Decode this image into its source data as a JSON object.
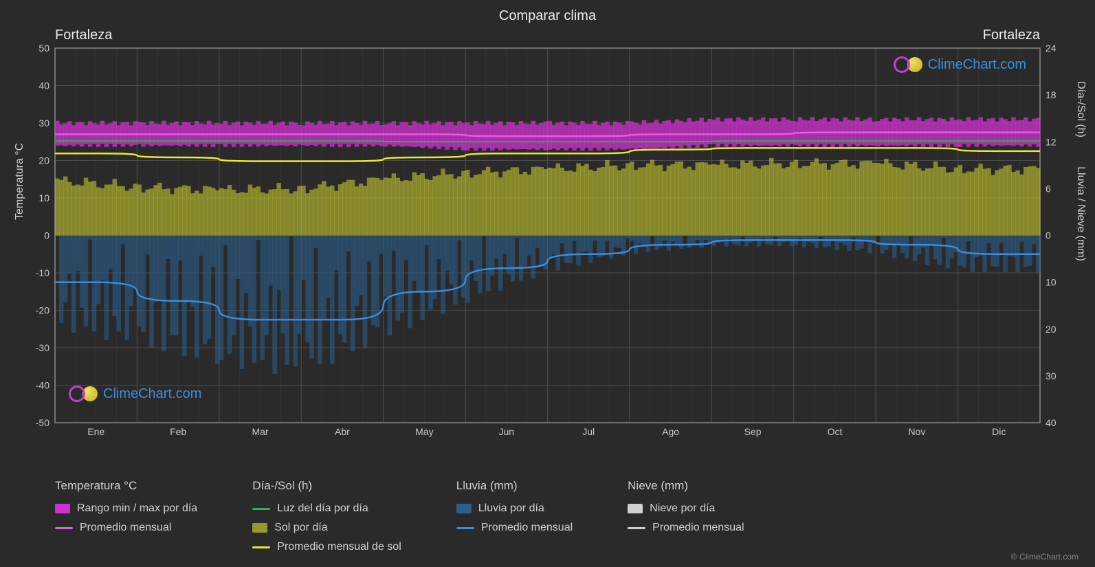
{
  "chart": {
    "title": "Comparar clima",
    "city_left": "Fortaleza",
    "city_right": "Fortaleza",
    "months": [
      "Ene",
      "Feb",
      "Mar",
      "Abr",
      "May",
      "Jun",
      "Jul",
      "Ago",
      "Sep",
      "Oct",
      "Nov",
      "Dic"
    ],
    "background_color": "#2a2a2a",
    "plot_background": "#2a2a2a",
    "grid_color": "#4a4a4a",
    "temp_axis": {
      "label": "Temperatura °C",
      "min": -50,
      "max": 50,
      "step": 10,
      "ticks": [
        -50,
        -40,
        -30,
        -20,
        -10,
        0,
        10,
        20,
        30,
        40,
        50
      ]
    },
    "daysun_axis": {
      "label": "Día-/Sol (h)",
      "min": 0,
      "max": 24,
      "step": 6,
      "ticks": [
        0,
        6,
        12,
        18,
        24
      ]
    },
    "rain_axis": {
      "label": "Lluvia / Nieve (mm)",
      "min": 0,
      "max": 40,
      "step": 10,
      "ticks": [
        0,
        10,
        20,
        30,
        40
      ]
    },
    "series": {
      "temp_range": {
        "color": "#d030d0",
        "min_c": [
          24,
          24,
          24,
          24,
          24,
          23,
          23,
          23,
          24,
          24,
          24,
          24
        ],
        "max_c": [
          30,
          30,
          30,
          30,
          30,
          30,
          30,
          30,
          31,
          31,
          31,
          31
        ]
      },
      "temp_avg": {
        "color": "#e060e0",
        "values": [
          27,
          27,
          27,
          27,
          27,
          26.5,
          26.5,
          27,
          27,
          27.5,
          27.5,
          27.5
        ]
      },
      "daylight": {
        "color": "#30b050",
        "hours": [
          12.1,
          12.1,
          12.1,
          12.1,
          12.0,
          12.0,
          12.0,
          12.0,
          12.1,
          12.1,
          12.1,
          12.1
        ]
      },
      "sun_per_day": {
        "color": "#b8b830",
        "hours": [
          7.0,
          6.2,
          5.8,
          6.0,
          7.2,
          8.0,
          8.5,
          9.0,
          9.0,
          9.2,
          9.2,
          8.5
        ]
      },
      "sun_avg": {
        "color": "#e8e830",
        "hours": [
          10.5,
          10.0,
          9.5,
          9.5,
          10.0,
          10.5,
          10.5,
          11.0,
          11.2,
          11.2,
          11.2,
          10.8
        ]
      },
      "rain_monthly": {
        "color": "#3a8de0",
        "mm": [
          10,
          14,
          18,
          18,
          12,
          7,
          4,
          2,
          1,
          1,
          2,
          4
        ]
      },
      "rain_daily_band": {
        "color": "#2a6090",
        "max_mm": [
          25,
          30,
          35,
          38,
          28,
          18,
          10,
          5,
          3,
          3,
          5,
          10
        ]
      }
    },
    "legend": {
      "groups": [
        {
          "title": "Temperatura °C",
          "items": [
            {
              "swatch": "#d030d0",
              "type": "box",
              "label": "Rango min / max por día"
            },
            {
              "swatch": "#e060e0",
              "type": "line",
              "label": "Promedio mensual"
            }
          ]
        },
        {
          "title": "Día-/Sol (h)",
          "items": [
            {
              "swatch": "#30b050",
              "type": "line",
              "label": "Luz del día por día"
            },
            {
              "swatch": "#98982a",
              "type": "box",
              "label": "Sol por día"
            },
            {
              "swatch": "#e8e830",
              "type": "line",
              "label": "Promedio mensual de sol"
            }
          ]
        },
        {
          "title": "Lluvia (mm)",
          "items": [
            {
              "swatch": "#2a6090",
              "type": "box",
              "label": "Lluvia por día"
            },
            {
              "swatch": "#3a8de0",
              "type": "line",
              "label": "Promedio mensual"
            }
          ]
        },
        {
          "title": "Nieve (mm)",
          "items": [
            {
              "swatch": "#d0d0d0",
              "type": "box",
              "label": "Nieve por día"
            },
            {
              "swatch": "#d0d0d0",
              "type": "line",
              "label": "Promedio mensual"
            }
          ]
        }
      ]
    },
    "watermark_text": "ClimeChart.com",
    "copyright": "© ClimeChart.com"
  }
}
